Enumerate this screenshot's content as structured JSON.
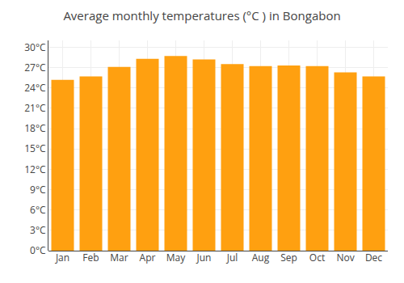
{
  "chart_data": {
    "type": "bar",
    "title": "Average monthly temperatures (°C ) in Bongabon",
    "categories": [
      "Jan",
      "Feb",
      "Mar",
      "Apr",
      "May",
      "Jun",
      "Jul",
      "Aug",
      "Sep",
      "Oct",
      "Nov",
      "Dec"
    ],
    "values": [
      25.2,
      25.7,
      27.1,
      28.3,
      28.7,
      28.2,
      27.5,
      27.2,
      27.3,
      27.2,
      26.3,
      25.7
    ],
    "color": "#FFA010",
    "ylim": [
      0,
      31
    ],
    "yticks": [
      {
        "value": 0,
        "label": "0°C"
      },
      {
        "value": 3,
        "label": "3°C"
      },
      {
        "value": 6,
        "label": "6°C"
      },
      {
        "value": 9,
        "label": "9°C"
      },
      {
        "value": 12,
        "label": "12°C"
      },
      {
        "value": 15,
        "label": "15°C"
      },
      {
        "value": 18,
        "label": "18°C"
      },
      {
        "value": 21,
        "label": "21°C"
      },
      {
        "value": 24,
        "label": "24°C"
      },
      {
        "value": 27,
        "label": "27°C"
      },
      {
        "value": 30,
        "label": "30°C"
      }
    ],
    "grid": true
  }
}
